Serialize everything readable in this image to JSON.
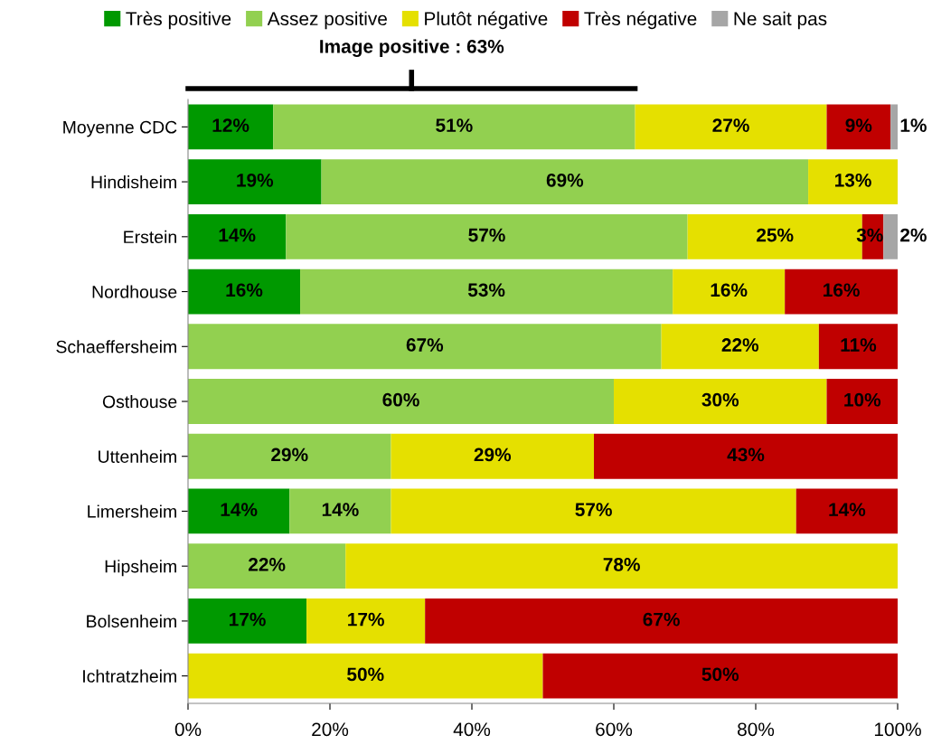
{
  "chart_data": {
    "type": "bar",
    "orientation": "horizontal",
    "stacked": true,
    "categories": [
      "Moyenne CDC",
      "Hindisheim",
      "Erstein",
      "Nordhouse",
      "Schaeffersheim",
      "Osthouse",
      "Uttenheim",
      "Limersheim",
      "Hipsheim",
      "Bolsenheim",
      "Ichtratzheim"
    ],
    "series": [
      {
        "name": "Très positive",
        "color": "#009900",
        "values": [
          12,
          18.8,
          13.8,
          15.8,
          null,
          null,
          null,
          14.3,
          null,
          16.7,
          null
        ],
        "value_labels": [
          "12%",
          "19%",
          "14%",
          "16%",
          null,
          null,
          null,
          "14%",
          null,
          "17%",
          null
        ]
      },
      {
        "name": "Assez positive",
        "color": "#92d050",
        "values": [
          51,
          68.6,
          56.6,
          52.5,
          66.7,
          60,
          28.6,
          14.3,
          22.2,
          null,
          null
        ],
        "value_labels": [
          "51%",
          "69%",
          "57%",
          "53%",
          "67%",
          "60%",
          "29%",
          "14%",
          "22%",
          null,
          null
        ]
      },
      {
        "name": "Plutôt négative",
        "color": "#e5e000",
        "values": [
          27,
          12.6,
          24.6,
          15.8,
          22.2,
          30,
          28.6,
          57.1,
          77.8,
          16.7,
          50
        ],
        "value_labels": [
          "27%",
          "13%",
          "25%",
          "16%",
          "22%",
          "30%",
          "29%",
          "57%",
          "78%",
          "17%",
          "50%"
        ]
      },
      {
        "name": "Très négative",
        "color": "#c00000",
        "values": [
          9,
          null,
          3.0,
          15.9,
          11.1,
          10,
          42.8,
          14.3,
          null,
          66.6,
          50
        ],
        "value_labels": [
          "9%",
          null,
          "3%",
          "16%",
          "11%",
          "10%",
          "43%",
          "14%",
          null,
          "67%",
          "50%"
        ]
      },
      {
        "name": "Ne sait pas",
        "color": "#a6a6a6",
        "values": [
          1,
          null,
          2.0,
          null,
          null,
          null,
          null,
          null,
          null,
          null,
          null
        ],
        "value_labels": [
          "1%",
          null,
          "2%",
          null,
          null,
          null,
          null,
          null,
          null,
          null,
          null
        ]
      }
    ],
    "xlim": [
      0,
      100
    ],
    "xticks": [
      {
        "value": 0,
        "label": "0%"
      },
      {
        "value": 20,
        "label": "20%"
      },
      {
        "value": 40,
        "label": "40%"
      },
      {
        "value": 60,
        "label": "60%"
      },
      {
        "value": 80,
        "label": "80%"
      },
      {
        "value": 100,
        "label": "100%"
      }
    ],
    "annotations": [
      "Image positive : 63%"
    ],
    "legend": "top",
    "grid": false
  }
}
